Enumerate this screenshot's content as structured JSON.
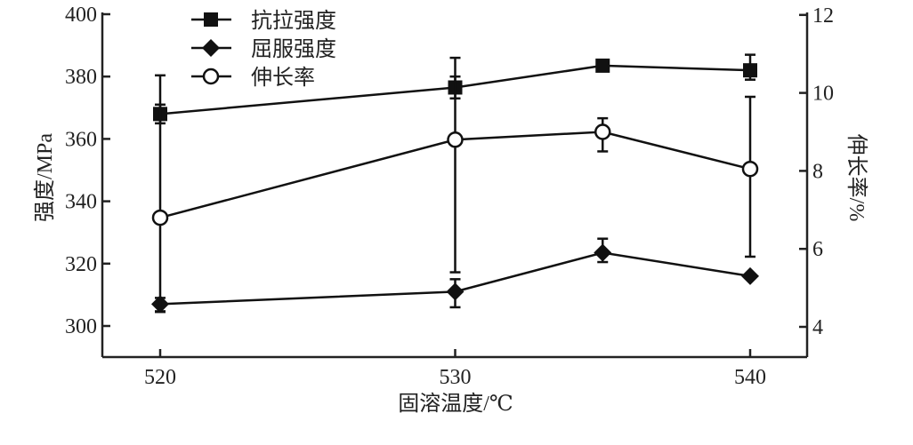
{
  "chart_data": {
    "type": "line",
    "xlabel": "固溶温度/℃",
    "ylabel": "强度/MPa",
    "y2label": "伸长率/%",
    "xlim": [
      518,
      542
    ],
    "ylim": [
      290,
      400
    ],
    "y2lim": [
      3.2,
      12
    ],
    "xticks": [
      "520",
      "530",
      "540"
    ],
    "yticks": [
      "300",
      "320",
      "340",
      "360",
      "380",
      "400"
    ],
    "y2ticks": [
      "4",
      "6",
      "8",
      "10",
      "12"
    ],
    "grid": false,
    "legend_position": "top-left",
    "x": [
      520,
      530,
      535,
      540
    ],
    "series": [
      {
        "name": "抗拉强度",
        "axis": "left",
        "marker": "square",
        "values": [
          368,
          376.5,
          383.5,
          382
        ],
        "err_low": [
          365,
          373,
          383.5,
          379
        ],
        "err_high": [
          371,
          380,
          383.5,
          387
        ]
      },
      {
        "name": "屈服强度",
        "axis": "left",
        "marker": "diamond",
        "values": [
          307,
          311,
          323.5,
          316
        ],
        "err_low": [
          304.5,
          306,
          320.5,
          316
        ],
        "err_high": [
          309,
          315,
          328,
          316
        ]
      },
      {
        "name": "伸长率",
        "axis": "right",
        "marker": "circle",
        "values": [
          6.8,
          8.8,
          9.0,
          8.05
        ],
        "err_low": [
          4.4,
          5.4,
          8.5,
          5.8
        ],
        "err_high": [
          10.45,
          10.9,
          9.35,
          9.9
        ]
      }
    ]
  }
}
